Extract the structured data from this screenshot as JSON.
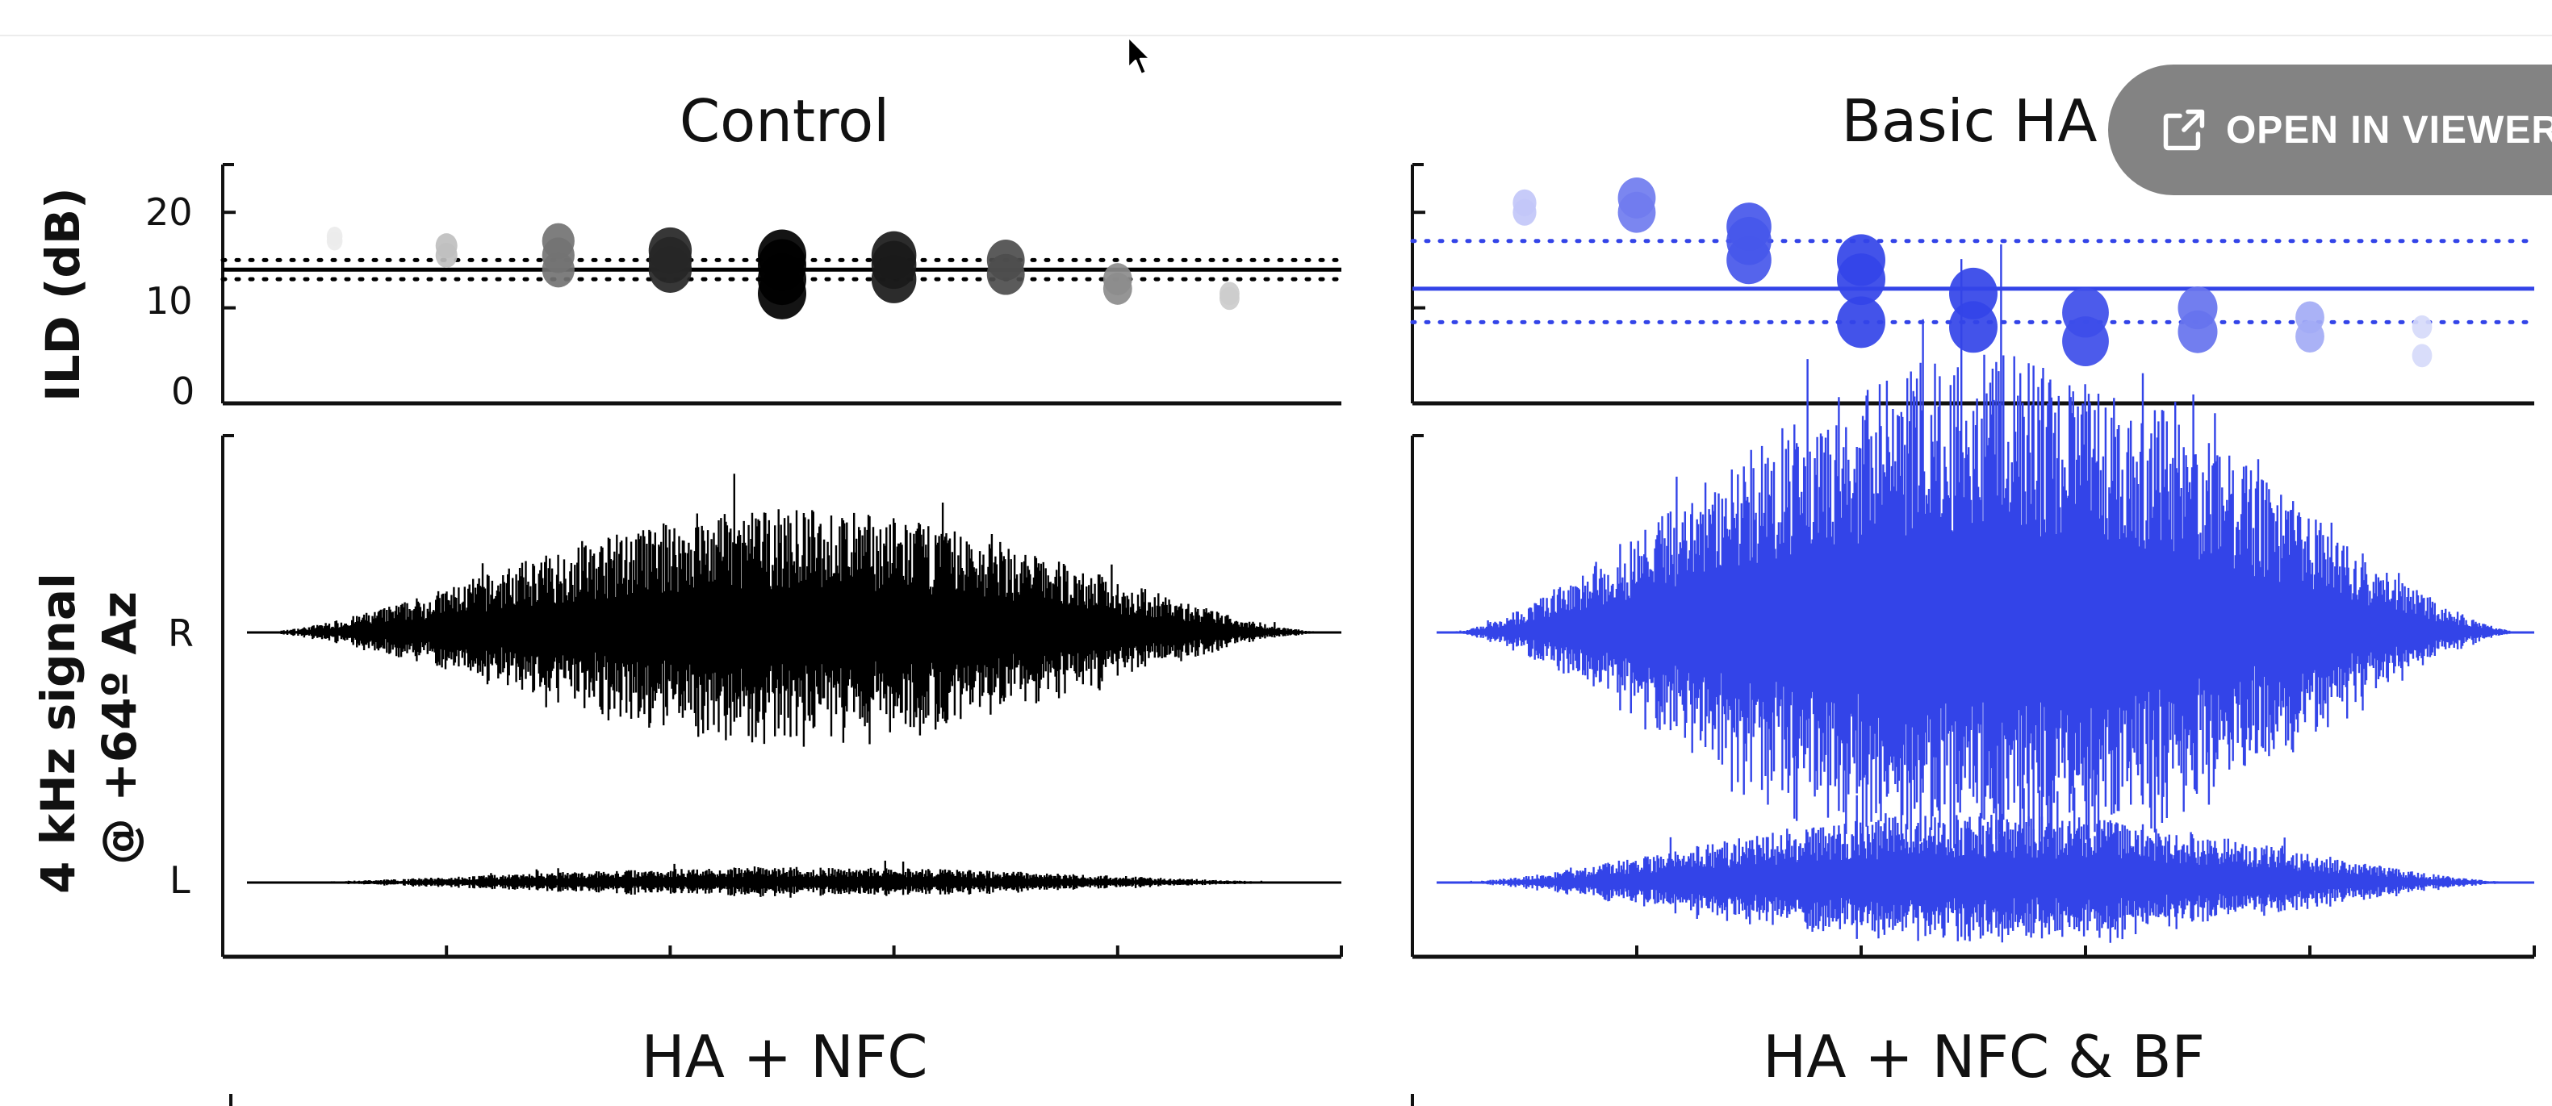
{
  "figure": {
    "panels": {
      "control": {
        "title": "Control",
        "color": "#000000"
      },
      "basic_ha": {
        "title": "Basic HA",
        "color": "#3344e8"
      },
      "ha_nfc": {
        "title": "HA + NFC"
      },
      "ha_nfc_bf": {
        "title": "HA + NFC & BF"
      }
    },
    "ild_axis": {
      "label": "ILD (dB)",
      "ticks": [
        "20",
        "10",
        "0"
      ],
      "range": [
        0,
        25
      ]
    },
    "signal_axis": {
      "label_line1": "4 kHz signal",
      "label_line2": "@ +64º Az",
      "channels": [
        "R",
        "L"
      ]
    }
  },
  "chart_data": [
    {
      "type": "scatter",
      "title": "Control",
      "ylabel": "ILD (dB)",
      "ylim": [
        0,
        25
      ],
      "yticks": [
        0,
        10,
        20
      ],
      "reference": {
        "solid": 14,
        "dotted": [
          13,
          15
        ]
      },
      "color": "#000000",
      "clusters": [
        {
          "y": [
            17,
            17.5
          ],
          "shade": 0.08
        },
        {
          "y": [
            15.5,
            16.5
          ],
          "shade": 0.25
        },
        {
          "y": [
            14,
            15.5,
            17
          ],
          "shade": 0.55
        },
        {
          "y": [
            14,
            15,
            16
          ],
          "shade": 0.85
        },
        {
          "y": [
            11.5,
            13,
            14.5,
            15.5
          ],
          "shade": 1.0
        },
        {
          "y": [
            13,
            14.5,
            15.5
          ],
          "shade": 0.9
        },
        {
          "y": [
            13.5,
            15
          ],
          "shade": 0.7
        },
        {
          "y": [
            12,
            13
          ],
          "shade": 0.45
        },
        {
          "y": [
            11,
            11.5
          ],
          "shade": 0.2
        }
      ]
    },
    {
      "type": "scatter",
      "title": "Basic HA",
      "ylim": [
        0,
        25
      ],
      "reference": {
        "solid": 12,
        "dotted": [
          8.5,
          17
        ]
      },
      "color": "#3344e8",
      "clusters": [
        {
          "y": [
            20,
            21
          ],
          "shade": 0.3
        },
        {
          "y": [
            20,
            21.5
          ],
          "shade": 0.7
        },
        {
          "y": [
            15,
            17,
            18.5
          ],
          "shade": 0.9
        },
        {
          "y": [
            8.5,
            13,
            15
          ],
          "shade": 1.0
        },
        {
          "y": [
            8,
            11.5
          ],
          "shade": 1.0
        },
        {
          "y": [
            6.5,
            9.5
          ],
          "shade": 0.95
        },
        {
          "y": [
            7.5,
            10
          ],
          "shade": 0.75
        },
        {
          "y": [
            7,
            9
          ],
          "shade": 0.45
        },
        {
          "y": [
            5,
            8
          ],
          "shade": 0.2
        }
      ]
    },
    {
      "type": "area",
      "title": "Control",
      "series": [
        {
          "name": "R",
          "peak_amplitude": 0.32
        },
        {
          "name": "L",
          "peak_amplitude": 0.04
        }
      ]
    },
    {
      "type": "area",
      "title": "Basic HA",
      "series": [
        {
          "name": "R",
          "peak_amplitude": 0.72
        },
        {
          "name": "L",
          "peak_amplitude": 0.18
        }
      ]
    }
  ],
  "viewer_button": {
    "label": "OPEN IN VIEWER"
  }
}
